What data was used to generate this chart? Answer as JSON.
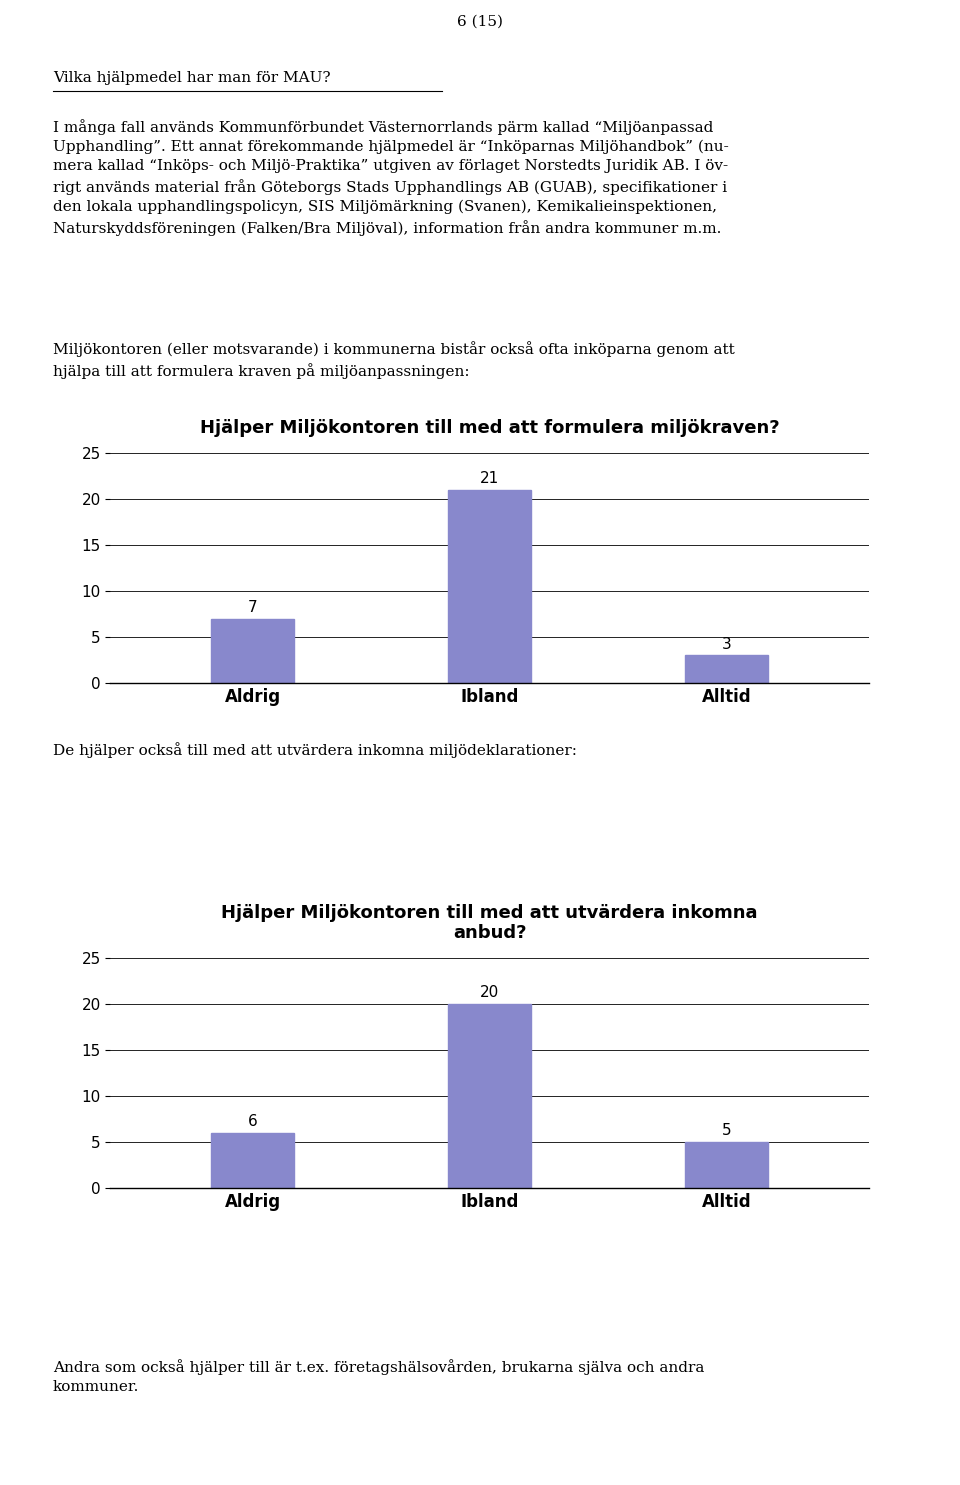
{
  "page_number": "6 (15)",
  "heading": "Vilka hjälpmedel har man för MAU?",
  "para1": "I många fall används Kommunförbundet Västernorrlands pärm kallad “Miljöanpassad\nUpphandling”. Ett annat förekommande hjälpmedel är “Inköparnas Miljöhandbok” (nu-\nmera kallad “Inköps- och Miljö-Praktika” utgiven av förlaget Norstedts Juridik AB. I öv-\nrigt används material från Göteborgs Stads Upphandlings AB (GUAB), specifikationer i\nden lokala upphandlingspolicyn, SIS Miljömärkning (Svanen), Kemikalieinspektionen,\nNaturskyddsföreningen (Falken/Bra Miljöval), information från andra kommuner m.m.",
  "para2": "Miljökontoren (eller motsvarande) i kommunerna bistår också ofta inköparna genom att\nhjälpa till att formulera kraven på miljöanpassningen:",
  "chart1_title": "Hjälper Miljökontoren till med att formulera miljökraven?",
  "chart1_categories": [
    "Aldrig",
    "Ibland",
    "Alltid"
  ],
  "chart1_values": [
    7,
    21,
    3
  ],
  "between_text": "De hjälper också till med att utvärdera inkomna miljödeklarationer:",
  "chart2_title": "Hjälper Miljökontoren till med att utvärdera inkomna\nanbud?",
  "chart2_categories": [
    "Aldrig",
    "Ibland",
    "Alltid"
  ],
  "chart2_values": [
    6,
    20,
    5
  ],
  "footer_text": "Andra som också hjälper till är t.ex. företagshälsovården, brukarna själva och andra\nkommuner.",
  "ylim": [
    0,
    25
  ],
  "yticks": [
    0,
    5,
    10,
    15,
    20,
    25
  ],
  "bar_color": "#8888cc",
  "bar_width": 0.35,
  "bg_color": "#ffffff",
  "text_color": "#000000",
  "body_fontsize": 11,
  "chart_title_fontsize": 13,
  "tick_fontsize": 11,
  "label_fontsize": 12
}
